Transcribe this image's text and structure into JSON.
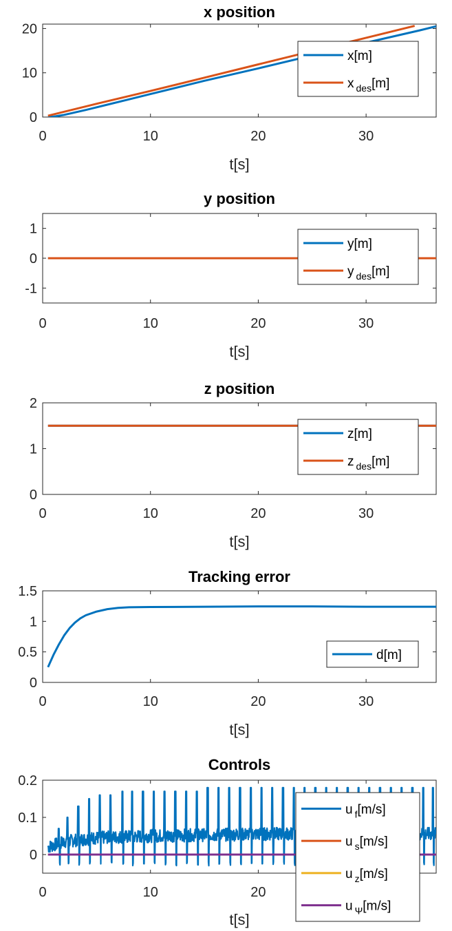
{
  "chart_data": [
    {
      "type": "line",
      "title": "x position",
      "xlabel": "t[s]",
      "xlim": [
        0,
        36.5
      ],
      "ylim": [
        0,
        21
      ],
      "xticks": [
        0,
        10,
        20,
        30
      ],
      "yticks": [
        0,
        10,
        20
      ],
      "legend_position": "top-right",
      "series": [
        {
          "name": "x[m]",
          "name_main": "x",
          "name_sub": "",
          "name_unit": "[m]",
          "color": "#0072BD",
          "x": [
            0.5,
            1,
            2,
            4,
            6,
            8,
            10,
            15,
            20,
            25,
            30,
            35,
            36.5
          ],
          "y": [
            0,
            0.1,
            0.5,
            1.6,
            2.8,
            4.0,
            5.2,
            8.2,
            11.0,
            13.9,
            16.8,
            19.6,
            20.5
          ]
        },
        {
          "name": "x des[m]",
          "name_main": "x",
          "name_sub": "des",
          "name_unit": "[m]",
          "color": "#D95319",
          "x": [
            0.5,
            5,
            10,
            15,
            20,
            25,
            30,
            34.5
          ],
          "y": [
            0.3,
            3.0,
            5.9,
            8.9,
            11.9,
            14.9,
            17.9,
            20.6
          ]
        }
      ]
    },
    {
      "type": "line",
      "title": "y position",
      "xlabel": "t[s]",
      "xlim": [
        0,
        36.5
      ],
      "ylim": [
        -1.5,
        1.5
      ],
      "xticks": [
        0,
        10,
        20,
        30
      ],
      "yticks": [
        -1,
        0,
        1
      ],
      "legend_position": "top-right",
      "series": [
        {
          "name": "y[m]",
          "name_main": "y",
          "name_sub": "",
          "name_unit": "[m]",
          "color": "#0072BD",
          "x": [
            0.5,
            36.5
          ],
          "y": [
            0,
            0
          ]
        },
        {
          "name": "y des[m]",
          "name_main": "y",
          "name_sub": "des",
          "name_unit": "[m]",
          "color": "#D95319",
          "x": [
            0.5,
            36.5
          ],
          "y": [
            0,
            0
          ]
        }
      ]
    },
    {
      "type": "line",
      "title": "z position",
      "xlabel": "t[s]",
      "xlim": [
        0,
        36.5
      ],
      "ylim": [
        0,
        2
      ],
      "xticks": [
        0,
        10,
        20,
        30
      ],
      "yticks": [
        0,
        1,
        2
      ],
      "legend_position": "top-right",
      "series": [
        {
          "name": "z[m]",
          "name_main": "z",
          "name_sub": "",
          "name_unit": "[m]",
          "color": "#0072BD",
          "x": [
            0.5,
            36.5
          ],
          "y": [
            1.5,
            1.5
          ]
        },
        {
          "name": "z des[m]",
          "name_main": "z",
          "name_sub": "des",
          "name_unit": "[m]",
          "color": "#D95319",
          "x": [
            0.5,
            36.5
          ],
          "y": [
            1.5,
            1.5
          ]
        }
      ]
    },
    {
      "type": "line",
      "title": "Tracking error",
      "xlabel": "t[s]",
      "xlim": [
        0,
        36.5
      ],
      "ylim": [
        0,
        1.5
      ],
      "xticks": [
        0,
        10,
        20,
        30
      ],
      "yticks": [
        0,
        0.5,
        1,
        1.5
      ],
      "legend_position": "bottom-right",
      "series": [
        {
          "name": "d[m]",
          "name_main": "d",
          "name_sub": "",
          "name_unit": "[m]",
          "color": "#0072BD",
          "x": [
            0.5,
            1,
            1.5,
            2,
            2.5,
            3,
            3.5,
            4,
            5,
            6,
            7,
            8,
            10,
            15,
            20,
            25,
            30,
            36.5
          ],
          "y": [
            0.25,
            0.45,
            0.62,
            0.77,
            0.89,
            0.98,
            1.05,
            1.1,
            1.16,
            1.2,
            1.22,
            1.23,
            1.235,
            1.24,
            1.245,
            1.245,
            1.24,
            1.24
          ]
        }
      ]
    },
    {
      "type": "line",
      "title": "Controls",
      "xlabel": "t[s]",
      "xlim": [
        0,
        36.5
      ],
      "ylim": [
        -0.05,
        0.2
      ],
      "xticks": [
        0,
        10,
        20,
        30
      ],
      "yticks": [
        0,
        0.1,
        0.2
      ],
      "legend_position": "right",
      "noisy_series_note": "u_f oscillates around 0.04-0.06 with periodic spikes up to ~0.18",
      "series": [
        {
          "name": "u f[m/s]",
          "name_main": "u",
          "name_sub": "f",
          "name_unit": "[m/s]",
          "color": "#0072BD",
          "base": [
            [
              0.5,
              0.02
            ],
            [
              2,
              0.035
            ],
            [
              5,
              0.045
            ],
            [
              10,
              0.05
            ],
            [
              20,
              0.055
            ],
            [
              30,
              0.058
            ],
            [
              36.5,
              0.055
            ]
          ],
          "spikes_x": [
            1.5,
            2.3,
            3.3,
            4.3,
            5.3,
            6.3,
            7.4,
            8.3,
            9.3,
            10.3,
            11.3,
            12.3,
            13.3,
            14.3,
            15.3,
            16.3,
            17.3,
            18.3,
            19.3,
            20.3,
            21.3,
            22.3,
            23.3,
            24.3,
            25.3,
            26.3,
            27.3,
            28.3,
            29.3,
            30.3,
            31.3,
            32.3,
            33.3,
            34.3,
            35.3,
            36.2
          ],
          "spikes_y": [
            0.07,
            0.1,
            0.13,
            0.15,
            0.16,
            0.16,
            0.17,
            0.17,
            0.17,
            0.17,
            0.17,
            0.17,
            0.17,
            0.17,
            0.18,
            0.18,
            0.18,
            0.18,
            0.18,
            0.18,
            0.18,
            0.18,
            0.18,
            0.18,
            0.18,
            0.18,
            0.18,
            0.18,
            0.18,
            0.18,
            0.18,
            0.18,
            0.18,
            0.18,
            0.18,
            0.18
          ]
        },
        {
          "name": "u s[m/s]",
          "name_main": "u",
          "name_sub": "s",
          "name_unit": "[m/s]",
          "color": "#D95319",
          "x": [
            0.5,
            36.5
          ],
          "y": [
            0,
            0
          ]
        },
        {
          "name": "u z[m/s]",
          "name_main": "u",
          "name_sub": "z",
          "name_unit": "[m/s]",
          "color": "#EDB120",
          "x": [
            0.5,
            36.5
          ],
          "y": [
            0,
            0
          ]
        },
        {
          "name": "u Ψ[m/s]",
          "name_main": "u",
          "name_sub": "Ψ",
          "name_unit": "[m/s]",
          "color": "#7E2F8E",
          "x": [
            0.5,
            36.5
          ],
          "y": [
            0,
            0
          ]
        }
      ]
    }
  ]
}
